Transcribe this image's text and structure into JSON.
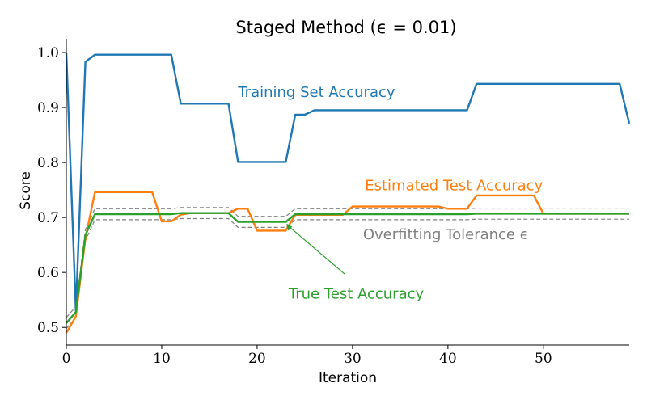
{
  "chart_data": {
    "type": "line",
    "title": "Staged Method (ϵ = 0.01)",
    "xlabel": "Iteration",
    "ylabel": "Score",
    "xlim": [
      0,
      59
    ],
    "ylim": [
      0.468,
      1.025
    ],
    "grid": false,
    "xticks": [
      0,
      10,
      20,
      30,
      40,
      50
    ],
    "yticks": [
      0.5,
      0.6,
      0.7,
      0.8,
      0.9,
      1.0
    ],
    "xtick_labels": [
      "0",
      "10",
      "20",
      "30",
      "40",
      "50"
    ],
    "ytick_labels": [
      "0.5",
      "0.6",
      "0.7",
      "0.8",
      "0.9",
      "1.0"
    ],
    "series": [
      {
        "name": "Training Set Accuracy",
        "color": "#1f77b4",
        "x": [
          0,
          1,
          2,
          3,
          4,
          5,
          6,
          7,
          8,
          9,
          10,
          11,
          12,
          13,
          14,
          15,
          16,
          17,
          18,
          19,
          20,
          21,
          22,
          23,
          24,
          25,
          26,
          27,
          28,
          29,
          30,
          31,
          32,
          33,
          34,
          35,
          36,
          37,
          38,
          39,
          40,
          41,
          42,
          43,
          44,
          45,
          46,
          47,
          48,
          49,
          50,
          51,
          52,
          53,
          54,
          55,
          56,
          57,
          58,
          59
        ],
        "values": [
          1.0,
          0.53,
          0.983,
          0.996,
          0.996,
          0.996,
          0.996,
          0.996,
          0.996,
          0.996,
          0.996,
          0.996,
          0.907,
          0.907,
          0.907,
          0.907,
          0.907,
          0.907,
          0.801,
          0.801,
          0.801,
          0.801,
          0.801,
          0.801,
          0.887,
          0.887,
          0.895,
          0.895,
          0.895,
          0.895,
          0.895,
          0.895,
          0.895,
          0.895,
          0.895,
          0.895,
          0.895,
          0.895,
          0.895,
          0.895,
          0.895,
          0.895,
          0.895,
          0.943,
          0.943,
          0.943,
          0.943,
          0.943,
          0.943,
          0.943,
          0.943,
          0.943,
          0.943,
          0.943,
          0.943,
          0.943,
          0.943,
          0.943,
          0.943,
          0.871
        ]
      },
      {
        "name": "Estimated Test Accuracy",
        "color": "#ff7f0e",
        "x": [
          0,
          1,
          2,
          3,
          4,
          5,
          6,
          7,
          8,
          9,
          10,
          11,
          12,
          13,
          14,
          15,
          16,
          17,
          18,
          19,
          20,
          21,
          22,
          23,
          24,
          25,
          26,
          27,
          28,
          29,
          30,
          31,
          32,
          33,
          34,
          35,
          36,
          37,
          38,
          39,
          40,
          41,
          42,
          43,
          44,
          45,
          46,
          47,
          48,
          49,
          50,
          51,
          52,
          53,
          54,
          55,
          56,
          57,
          58,
          59
        ],
        "values": [
          0.49,
          0.52,
          0.662,
          0.746,
          0.746,
          0.746,
          0.746,
          0.746,
          0.746,
          0.746,
          0.693,
          0.693,
          0.705,
          0.708,
          0.708,
          0.708,
          0.708,
          0.708,
          0.716,
          0.716,
          0.676,
          0.676,
          0.676,
          0.676,
          0.705,
          0.705,
          0.705,
          0.705,
          0.705,
          0.705,
          0.72,
          0.72,
          0.72,
          0.72,
          0.72,
          0.72,
          0.72,
          0.72,
          0.72,
          0.72,
          0.716,
          0.716,
          0.716,
          0.74,
          0.74,
          0.74,
          0.74,
          0.74,
          0.74,
          0.74,
          0.707,
          0.707,
          0.707,
          0.707,
          0.707,
          0.707,
          0.707,
          0.707,
          0.707,
          0.707
        ]
      },
      {
        "name": "True Test Accuracy",
        "color": "#2ca02c",
        "x": [
          0,
          1,
          2,
          3,
          4,
          5,
          6,
          7,
          8,
          9,
          10,
          11,
          12,
          13,
          14,
          15,
          16,
          17,
          18,
          19,
          20,
          21,
          22,
          23,
          24,
          25,
          26,
          27,
          28,
          29,
          30,
          31,
          32,
          33,
          34,
          35,
          36,
          37,
          38,
          39,
          40,
          41,
          42,
          43,
          44,
          45,
          46,
          47,
          48,
          49,
          50,
          51,
          52,
          53,
          54,
          55,
          56,
          57,
          58,
          59
        ],
        "values": [
          0.508,
          0.528,
          0.668,
          0.706,
          0.706,
          0.706,
          0.706,
          0.706,
          0.706,
          0.706,
          0.706,
          0.706,
          0.708,
          0.708,
          0.708,
          0.708,
          0.708,
          0.708,
          0.692,
          0.692,
          0.692,
          0.692,
          0.692,
          0.692,
          0.706,
          0.706,
          0.706,
          0.706,
          0.706,
          0.706,
          0.706,
          0.706,
          0.706,
          0.706,
          0.706,
          0.706,
          0.706,
          0.706,
          0.706,
          0.706,
          0.706,
          0.706,
          0.706,
          0.707,
          0.707,
          0.707,
          0.707,
          0.707,
          0.707,
          0.707,
          0.707,
          0.707,
          0.707,
          0.707,
          0.707,
          0.707,
          0.707,
          0.707,
          0.707,
          0.707
        ]
      }
    ],
    "tolerance_bands": [
      {
        "color": "#808080",
        "style": "dashed",
        "x": [
          0,
          1,
          2,
          3,
          4,
          5,
          6,
          7,
          8,
          9,
          10,
          11,
          12,
          13,
          14,
          15,
          16,
          17,
          18,
          19,
          20,
          21,
          22,
          23,
          24,
          25,
          26,
          27,
          28,
          29,
          30,
          31,
          32,
          33,
          34,
          35,
          36,
          37,
          38,
          39,
          40,
          41,
          42,
          43,
          44,
          45,
          46,
          47,
          48,
          49,
          50,
          51,
          52,
          53,
          54,
          55,
          56,
          57,
          58,
          59
        ],
        "values": [
          0.518,
          0.538,
          0.678,
          0.716,
          0.716,
          0.716,
          0.716,
          0.716,
          0.716,
          0.716,
          0.716,
          0.716,
          0.718,
          0.718,
          0.718,
          0.718,
          0.718,
          0.718,
          0.702,
          0.702,
          0.702,
          0.702,
          0.702,
          0.702,
          0.716,
          0.716,
          0.716,
          0.716,
          0.716,
          0.716,
          0.716,
          0.716,
          0.716,
          0.716,
          0.716,
          0.716,
          0.716,
          0.716,
          0.716,
          0.716,
          0.716,
          0.716,
          0.716,
          0.717,
          0.717,
          0.717,
          0.717,
          0.717,
          0.717,
          0.717,
          0.717,
          0.717,
          0.717,
          0.717,
          0.717,
          0.717,
          0.717,
          0.717,
          0.717,
          0.717
        ]
      },
      {
        "color": "#808080",
        "style": "dashed",
        "x": [
          0,
          1,
          2,
          3,
          4,
          5,
          6,
          7,
          8,
          9,
          10,
          11,
          12,
          13,
          14,
          15,
          16,
          17,
          18,
          19,
          20,
          21,
          22,
          23,
          24,
          25,
          26,
          27,
          28,
          29,
          30,
          31,
          32,
          33,
          34,
          35,
          36,
          37,
          38,
          39,
          40,
          41,
          42,
          43,
          44,
          45,
          46,
          47,
          48,
          49,
          50,
          51,
          52,
          53,
          54,
          55,
          56,
          57,
          58,
          59
        ],
        "values": [
          0.498,
          0.518,
          0.658,
          0.696,
          0.696,
          0.696,
          0.696,
          0.696,
          0.696,
          0.696,
          0.696,
          0.696,
          0.698,
          0.698,
          0.698,
          0.698,
          0.698,
          0.698,
          0.682,
          0.682,
          0.682,
          0.682,
          0.682,
          0.682,
          0.696,
          0.696,
          0.696,
          0.696,
          0.696,
          0.696,
          0.696,
          0.696,
          0.696,
          0.696,
          0.696,
          0.696,
          0.696,
          0.696,
          0.696,
          0.696,
          0.696,
          0.696,
          0.696,
          0.697,
          0.697,
          0.697,
          0.697,
          0.697,
          0.697,
          0.697,
          0.697,
          0.697,
          0.697,
          0.697,
          0.697,
          0.697,
          0.697,
          0.697,
          0.697,
          0.697
        ]
      }
    ],
    "annotations": [
      {
        "text": "Training Set Accuracy",
        "color": "#1f77b4",
        "x": 18,
        "y": 0.928
      },
      {
        "text": "Estimated Test Accuracy",
        "color": "#ff7f0e",
        "x": 31.3,
        "y": 0.758
      },
      {
        "text": "Overfitting Tolerance ϵ",
        "color": "#808080",
        "x": 31.1,
        "y": 0.669
      },
      {
        "text": "True Test Accuracy",
        "color": "#2ca02c",
        "x": 23.3,
        "y": 0.561,
        "arrow_to": {
          "x": 23,
          "y": 0.692
        }
      }
    ]
  }
}
